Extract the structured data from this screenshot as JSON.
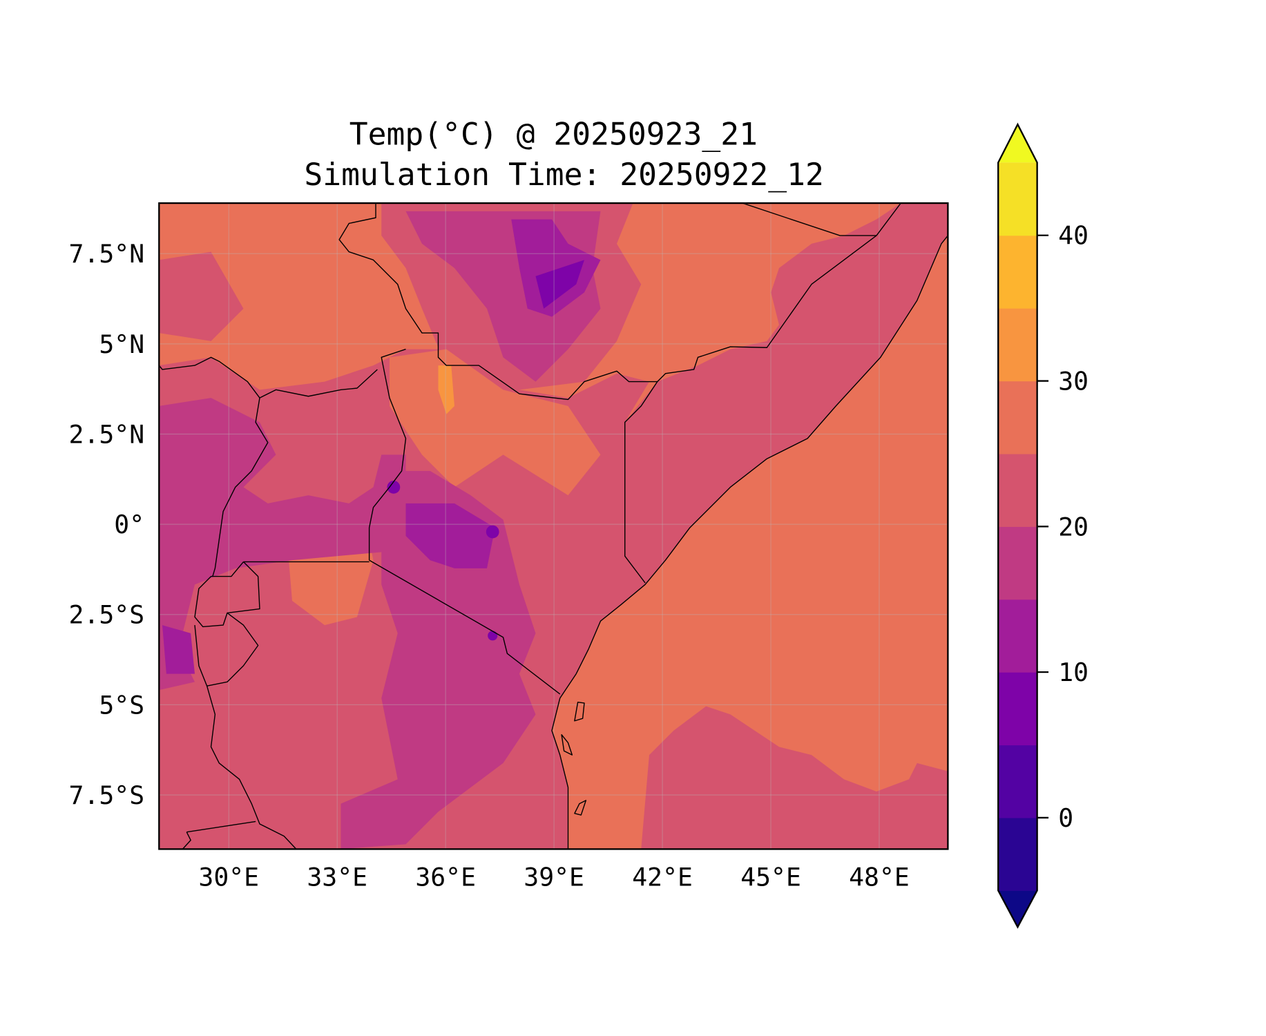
{
  "chart_data": {
    "type": "heatmap",
    "title_line1": "Temp(°C) @ 20250923_21",
    "title_line2": "Simulation Time: 20250922_12",
    "x_ticks": [
      {
        "value": 30,
        "label": "30°E"
      },
      {
        "value": 33,
        "label": "33°E"
      },
      {
        "value": 36,
        "label": "36°E"
      },
      {
        "value": 39,
        "label": "39°E"
      },
      {
        "value": 42,
        "label": "42°E"
      },
      {
        "value": 45,
        "label": "45°E"
      },
      {
        "value": 48,
        "label": "48°E"
      }
    ],
    "y_ticks": [
      {
        "value": 7.5,
        "label": "7.5°N"
      },
      {
        "value": 5,
        "label": "5°N"
      },
      {
        "value": 2.5,
        "label": "2.5°N"
      },
      {
        "value": 0,
        "label": "0°"
      },
      {
        "value": -2.5,
        "label": "2.5°S"
      },
      {
        "value": -5,
        "label": "5°S"
      },
      {
        "value": -7.5,
        "label": "7.5°S"
      }
    ],
    "xlim": [
      28.07,
      49.9
    ],
    "ylim": [
      -9.0,
      8.9
    ],
    "grid": true,
    "colorbar": {
      "levels": [
        -5,
        0,
        5,
        10,
        15,
        20,
        25,
        30,
        35,
        40,
        45
      ],
      "colors": [
        "#2a0593",
        "#5302a3",
        "#7e03a8",
        "#a21d9a",
        "#c03a83",
        "#d5546e",
        "#e97158",
        "#f89540",
        "#fdb42f",
        "#f5e026"
      ],
      "under_color": "#0d0887",
      "over_color": "#f0f921",
      "extend": "both",
      "ticks": [
        {
          "value": 0,
          "label": "0"
        },
        {
          "value": 10,
          "label": "10"
        },
        {
          "value": 20,
          "label": "20"
        },
        {
          "value": 30,
          "label": "30"
        },
        {
          "value": 40,
          "label": "40"
        }
      ]
    }
  }
}
